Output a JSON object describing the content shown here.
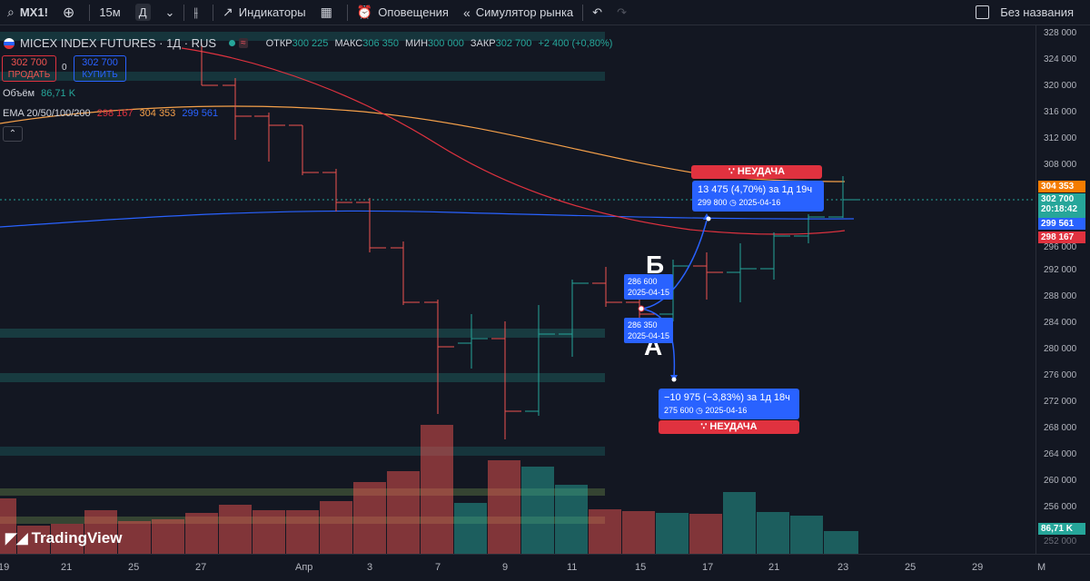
{
  "toolbar": {
    "symbol": "MX1!",
    "interval": "15м",
    "interval_active": "Д",
    "indicators": "Индикаторы",
    "alerts": "Оповещения",
    "replay": "Симулятор рынка",
    "layout_name": "Без названия"
  },
  "legend": {
    "title": "MICEX INDEX FUTURES · 1Д · RUS",
    "open_label": "ОТКР",
    "open": "300 225",
    "high_label": "МАКС",
    "high": "306 350",
    "low_label": "МИН",
    "low": "300 000",
    "close_label": "ЗАКР",
    "close": "302 700",
    "change": "+2 400 (+0,80%)",
    "sell_price": "302 700",
    "sell_label": "ПРОДАТЬ",
    "spread": "0",
    "buy_price": "302 700",
    "buy_label": "КУПИТЬ",
    "volume_label": "Объём",
    "volume": "86,71 K",
    "ema_label": "EMA 20/50/100/200",
    "ema1": "298 167",
    "ema2": "304 353",
    "ema3": "299 561"
  },
  "colors": {
    "up": "#26a69a",
    "down": "#ef5350",
    "ema20": "#e0323f",
    "ema50": "#f5a04a",
    "ema100": "#2962ff",
    "accent": "#2962ff"
  },
  "price_axis": {
    "ticks": [
      "328 000",
      "324 000",
      "320 000",
      "316 000",
      "312 000",
      "308 000",
      "304 353",
      "302 700",
      "20:18:42",
      "299 561",
      "298 167",
      "296 000",
      "292 000",
      "288 000",
      "284 000",
      "280 000",
      "276 000",
      "272 000",
      "268 000",
      "264 000",
      "260 000",
      "256 000",
      "86,71 K",
      "252 000"
    ]
  },
  "time_axis": {
    "ticks": [
      "19",
      "21",
      "25",
      "27",
      "Апр",
      "3",
      "7",
      "9",
      "11",
      "15",
      "17",
      "21",
      "23",
      "25",
      "29",
      "М"
    ]
  },
  "annotations": {
    "letter_b": "Б",
    "letter_a": "А",
    "b_price": "286 600",
    "b_date": "2025-04-15",
    "a_price": "286 350",
    "a_date": "2025-04-15",
    "up_text": "13 475 (4,70%) за 1д 19ч",
    "up_sub": "299 800 ◷ 2025-04-16",
    "down_text": "−10 975 (−3,83%) за 1д 18ч",
    "down_sub": "275 600 ◷ 2025-04-16",
    "fail1": "∵ НЕУДАЧА",
    "fail2": "∵ НЕУДАЧА"
  },
  "watermark": "TradingView"
}
